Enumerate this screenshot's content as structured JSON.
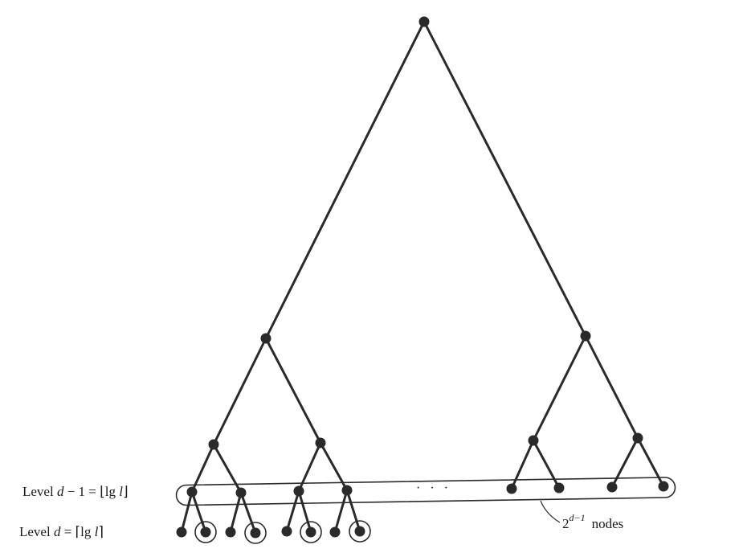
{
  "labels": {
    "level_upper_prefix": "Level ",
    "level_upper_var": "d",
    "level_upper_rest": " − 1  =  ⌊lg ",
    "level_upper_var2": "l",
    "level_upper_close": "⌋",
    "level_lower_prefix": "Level ",
    "level_lower_var": "d",
    "level_lower_rest": " = ⌈lg ",
    "level_lower_var2": "l",
    "level_lower_close": "⌉",
    "nodes_base": "2",
    "nodes_exp": "d−1",
    "nodes_word": "nodes",
    "ellipsis": "· · ·"
  },
  "colors": {
    "ink": "#2a2a2a"
  }
}
